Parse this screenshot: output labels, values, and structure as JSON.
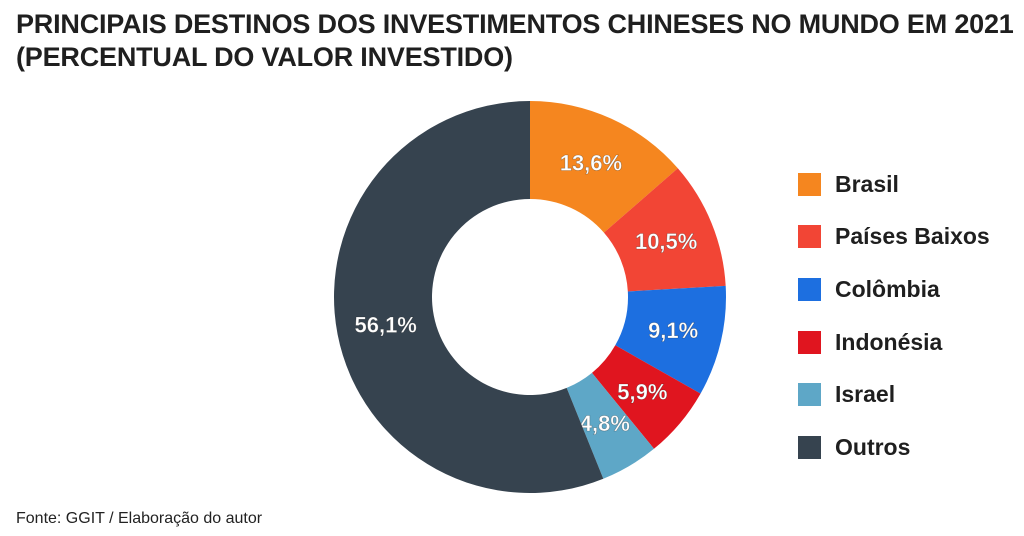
{
  "title_lines": [
    "PRINCIPAIS DESTINOS DOS INVESTIMENTOS CHINESES NO MUNDO EM 2021",
    "(PERCENTUAL DO VALOR INVESTIDO)"
  ],
  "source": "Fonte: GGIT / Elaboração do autor",
  "chart_data": {
    "type": "pie",
    "style": "donut",
    "categories": [
      "Brasil",
      "Países Baixos",
      "Colômbia",
      "Indonésia",
      "Israel",
      "Outros"
    ],
    "values": [
      13.6,
      10.5,
      9.1,
      5.9,
      4.8,
      56.1
    ],
    "value_labels": [
      "13,6%",
      "10,5%",
      "9,1%",
      "5,9%",
      "4,8%",
      "56,1%"
    ],
    "colors": [
      "#f5861f",
      "#f24535",
      "#1d6fe0",
      "#e0151f",
      "#5ea7c7",
      "#36434f"
    ],
    "legend_position": "right",
    "start": "12 o'clock, clockwise"
  }
}
